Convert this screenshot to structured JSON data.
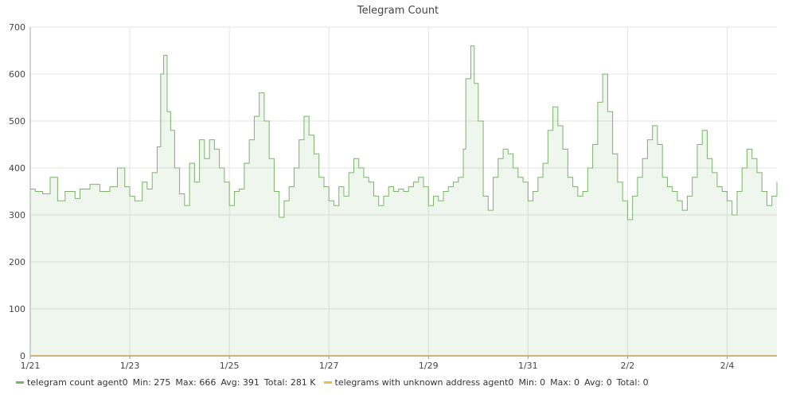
{
  "chart_data": {
    "type": "area",
    "title": "Telegram Count",
    "xlabel": "",
    "ylabel": "",
    "ylim": [
      0,
      700
    ],
    "yticks": [
      0,
      100,
      200,
      300,
      400,
      500,
      600,
      700
    ],
    "x_ticks": [
      "1/21",
      "1/23",
      "1/25",
      "1/27",
      "1/29",
      "1/31",
      "2/2",
      "2/4"
    ],
    "x_range_days": [
      0,
      15
    ],
    "grid": true,
    "legend_placement": "bottom",
    "series": [
      {
        "name": "telegram count agent0",
        "color": "#7cb36b",
        "stats": {
          "min": "275",
          "max": "666",
          "avg": "391",
          "total": "281 K"
        },
        "points": [
          [
            0.0,
            355
          ],
          [
            0.1,
            350
          ],
          [
            0.25,
            345
          ],
          [
            0.4,
            380
          ],
          [
            0.55,
            330
          ],
          [
            0.7,
            350
          ],
          [
            0.9,
            335
          ],
          [
            1.0,
            355
          ],
          [
            1.2,
            365
          ],
          [
            1.4,
            350
          ],
          [
            1.6,
            360
          ],
          [
            1.75,
            400
          ],
          [
            1.9,
            360
          ],
          [
            2.0,
            340
          ],
          [
            2.1,
            330
          ],
          [
            2.25,
            370
          ],
          [
            2.35,
            355
          ],
          [
            2.45,
            390
          ],
          [
            2.55,
            445
          ],
          [
            2.62,
            600
          ],
          [
            2.68,
            640
          ],
          [
            2.75,
            520
          ],
          [
            2.82,
            480
          ],
          [
            2.9,
            400
          ],
          [
            3.0,
            345
          ],
          [
            3.1,
            320
          ],
          [
            3.2,
            410
          ],
          [
            3.3,
            370
          ],
          [
            3.4,
            460
          ],
          [
            3.5,
            420
          ],
          [
            3.6,
            460
          ],
          [
            3.7,
            440
          ],
          [
            3.8,
            400
          ],
          [
            3.9,
            370
          ],
          [
            4.0,
            320
          ],
          [
            4.1,
            350
          ],
          [
            4.2,
            355
          ],
          [
            4.3,
            410
          ],
          [
            4.4,
            460
          ],
          [
            4.5,
            510
          ],
          [
            4.6,
            560
          ],
          [
            4.7,
            500
          ],
          [
            4.8,
            420
          ],
          [
            4.9,
            350
          ],
          [
            5.0,
            295
          ],
          [
            5.1,
            330
          ],
          [
            5.2,
            360
          ],
          [
            5.3,
            400
          ],
          [
            5.4,
            460
          ],
          [
            5.5,
            510
          ],
          [
            5.6,
            470
          ],
          [
            5.7,
            430
          ],
          [
            5.8,
            380
          ],
          [
            5.9,
            360
          ],
          [
            6.0,
            330
          ],
          [
            6.1,
            320
          ],
          [
            6.2,
            360
          ],
          [
            6.3,
            340
          ],
          [
            6.4,
            390
          ],
          [
            6.5,
            420
          ],
          [
            6.6,
            400
          ],
          [
            6.7,
            380
          ],
          [
            6.8,
            370
          ],
          [
            6.9,
            340
          ],
          [
            7.0,
            320
          ],
          [
            7.1,
            340
          ],
          [
            7.2,
            360
          ],
          [
            7.3,
            350
          ],
          [
            7.4,
            355
          ],
          [
            7.5,
            350
          ],
          [
            7.6,
            360
          ],
          [
            7.7,
            370
          ],
          [
            7.8,
            380
          ],
          [
            7.9,
            360
          ],
          [
            8.0,
            320
          ],
          [
            8.1,
            340
          ],
          [
            8.2,
            330
          ],
          [
            8.3,
            350
          ],
          [
            8.4,
            360
          ],
          [
            8.5,
            370
          ],
          [
            8.6,
            380
          ],
          [
            8.7,
            440
          ],
          [
            8.75,
            590
          ],
          [
            8.85,
            660
          ],
          [
            8.92,
            580
          ],
          [
            9.0,
            500
          ],
          [
            9.1,
            340
          ],
          [
            9.2,
            310
          ],
          [
            9.3,
            380
          ],
          [
            9.4,
            420
          ],
          [
            9.5,
            440
          ],
          [
            9.6,
            430
          ],
          [
            9.7,
            400
          ],
          [
            9.8,
            380
          ],
          [
            9.9,
            370
          ],
          [
            10.0,
            330
          ],
          [
            10.1,
            350
          ],
          [
            10.2,
            380
          ],
          [
            10.3,
            410
          ],
          [
            10.4,
            480
          ],
          [
            10.5,
            530
          ],
          [
            10.6,
            490
          ],
          [
            10.7,
            440
          ],
          [
            10.8,
            380
          ],
          [
            10.9,
            360
          ],
          [
            11.0,
            340
          ],
          [
            11.1,
            350
          ],
          [
            11.2,
            400
          ],
          [
            11.3,
            450
          ],
          [
            11.4,
            540
          ],
          [
            11.5,
            600
          ],
          [
            11.6,
            520
          ],
          [
            11.7,
            430
          ],
          [
            11.8,
            370
          ],
          [
            11.9,
            330
          ],
          [
            12.0,
            290
          ],
          [
            12.1,
            340
          ],
          [
            12.2,
            380
          ],
          [
            12.3,
            420
          ],
          [
            12.4,
            460
          ],
          [
            12.5,
            490
          ],
          [
            12.6,
            450
          ],
          [
            12.7,
            380
          ],
          [
            12.8,
            360
          ],
          [
            12.9,
            350
          ],
          [
            13.0,
            330
          ],
          [
            13.1,
            310
          ],
          [
            13.2,
            340
          ],
          [
            13.3,
            380
          ],
          [
            13.4,
            450
          ],
          [
            13.5,
            480
          ],
          [
            13.6,
            420
          ],
          [
            13.7,
            390
          ],
          [
            13.8,
            360
          ],
          [
            13.9,
            350
          ],
          [
            14.0,
            330
          ],
          [
            14.1,
            300
          ],
          [
            14.2,
            350
          ],
          [
            14.3,
            400
          ],
          [
            14.4,
            440
          ],
          [
            14.5,
            420
          ],
          [
            14.6,
            390
          ],
          [
            14.7,
            350
          ],
          [
            14.8,
            320
          ],
          [
            14.9,
            340
          ],
          [
            15.0,
            370
          ]
        ]
      },
      {
        "name": "telegrams with unknown address agent0",
        "color": "#e5c04e",
        "stats": {
          "min": "0",
          "max": "0",
          "avg": "0",
          "total": "0"
        },
        "points": [
          [
            0.0,
            0
          ],
          [
            15.0,
            0
          ]
        ]
      }
    ],
    "legend_labels": {
      "min": "Min:",
      "max": "Max:",
      "avg": "Avg:",
      "total": "Total:"
    }
  }
}
